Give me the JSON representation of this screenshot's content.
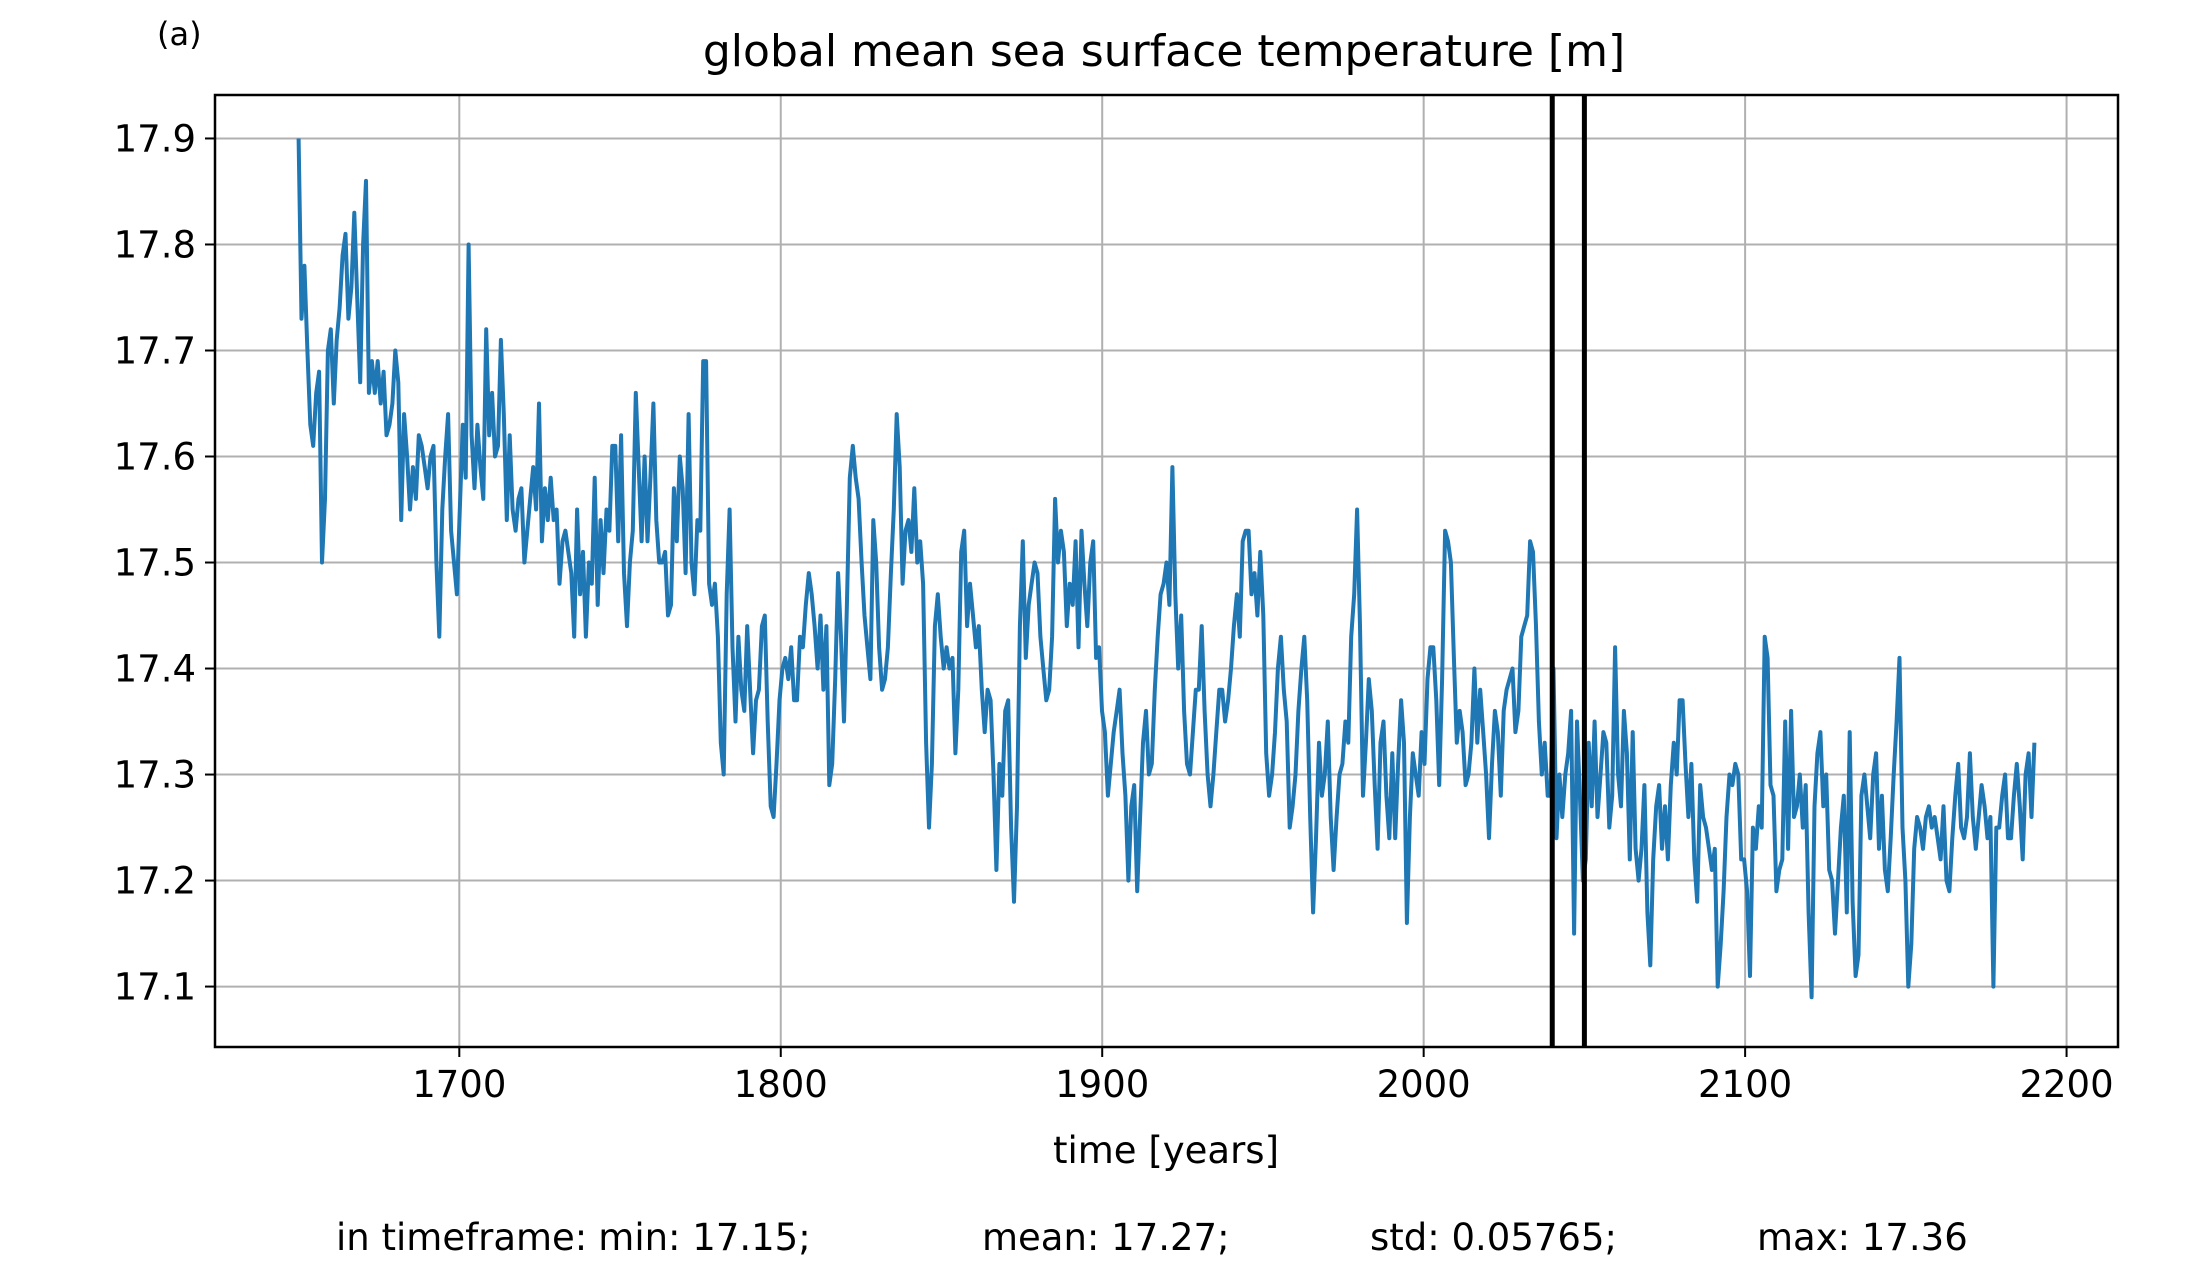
{
  "panel_label": "(a)",
  "chart_data": {
    "type": "line",
    "title": "global mean sea surface temperature [m]",
    "xlabel": "time [years]",
    "ylabel": "",
    "xlim": [
      1624,
      2216
    ],
    "ylim": [
      17.043,
      17.941
    ],
    "xticks": [
      1700,
      1800,
      1900,
      2000,
      2100,
      2200
    ],
    "yticks": [
      17.1,
      17.2,
      17.3,
      17.4,
      17.5,
      17.6,
      17.7,
      17.8,
      17.9
    ],
    "grid": true,
    "series_color": "#1f77b4",
    "vertical_markers": [
      2040,
      2050
    ],
    "series": [
      {
        "x_start": 1650,
        "x_end": 2190,
        "values": [
          17.9,
          17.73,
          17.78,
          17.7,
          17.63,
          17.61,
          17.66,
          17.68,
          17.5,
          17.56,
          17.7,
          17.72,
          17.65,
          17.71,
          17.74,
          17.79,
          17.81,
          17.73,
          17.76,
          17.83,
          17.75,
          17.67,
          17.8,
          17.86,
          17.66,
          17.69,
          17.66,
          17.69,
          17.65,
          17.68,
          17.62,
          17.63,
          17.65,
          17.7,
          17.67,
          17.54,
          17.64,
          17.6,
          17.55,
          17.59,
          17.56,
          17.62,
          17.61,
          17.59,
          17.57,
          17.6,
          17.61,
          17.5,
          17.43,
          17.55,
          17.6,
          17.64,
          17.53,
          17.5,
          17.47,
          17.55,
          17.63,
          17.58,
          17.8,
          17.62,
          17.57,
          17.63,
          17.59,
          17.56,
          17.72,
          17.62,
          17.66,
          17.6,
          17.61,
          17.71,
          17.64,
          17.54,
          17.62,
          17.55,
          17.53,
          17.56,
          17.57,
          17.5,
          17.53,
          17.56,
          17.59,
          17.55,
          17.65,
          17.52,
          17.57,
          17.54,
          17.58,
          17.54,
          17.55,
          17.48,
          17.52,
          17.53,
          17.51,
          17.49,
          17.43,
          17.55,
          17.47,
          17.51,
          17.43,
          17.5,
          17.48,
          17.58,
          17.46,
          17.54,
          17.49,
          17.55,
          17.53,
          17.61,
          17.61,
          17.52,
          17.62,
          17.49,
          17.44,
          17.5,
          17.53,
          17.66,
          17.59,
          17.52,
          17.6,
          17.52,
          17.58,
          17.65,
          17.54,
          17.5,
          17.5,
          17.51,
          17.45,
          17.46,
          17.57,
          17.52,
          17.6,
          17.57,
          17.49,
          17.64,
          17.5,
          17.47,
          17.54,
          17.53,
          17.69,
          17.69,
          17.48,
          17.46,
          17.48,
          17.43,
          17.33,
          17.3,
          17.47,
          17.55,
          17.42,
          17.35,
          17.43,
          17.38,
          17.36,
          17.44,
          17.38,
          17.32,
          17.37,
          17.38,
          17.44,
          17.45,
          17.35,
          17.27,
          17.26,
          17.31,
          17.37,
          17.4,
          17.41,
          17.39,
          17.42,
          17.37,
          17.37,
          17.43,
          17.42,
          17.46,
          17.49,
          17.47,
          17.44,
          17.4,
          17.45,
          17.38,
          17.44,
          17.29,
          17.31,
          17.39,
          17.49,
          17.43,
          17.35,
          17.46,
          17.58,
          17.61,
          17.58,
          17.56,
          17.5,
          17.45,
          17.42,
          17.39,
          17.54,
          17.5,
          17.42,
          17.38,
          17.39,
          17.42,
          17.49,
          17.55,
          17.64,
          17.59,
          17.48,
          17.53,
          17.54,
          17.51,
          17.57,
          17.5,
          17.52,
          17.48,
          17.33,
          17.25,
          17.31,
          17.44,
          17.47,
          17.43,
          17.4,
          17.42,
          17.4,
          17.41,
          17.32,
          17.38,
          17.51,
          17.53,
          17.44,
          17.48,
          17.45,
          17.42,
          17.44,
          17.38,
          17.34,
          17.38,
          17.37,
          17.3,
          17.21,
          17.31,
          17.28,
          17.36,
          17.37,
          17.25,
          17.18,
          17.27,
          17.44,
          17.52,
          17.41,
          17.46,
          17.48,
          17.5,
          17.49,
          17.43,
          17.4,
          17.37,
          17.38,
          17.43,
          17.56,
          17.5,
          17.53,
          17.51,
          17.44,
          17.48,
          17.46,
          17.52,
          17.42,
          17.53,
          17.48,
          17.44,
          17.5,
          17.52,
          17.41,
          17.42,
          17.36,
          17.34,
          17.28,
          17.31,
          17.34,
          17.36,
          17.38,
          17.32,
          17.28,
          17.2,
          17.27,
          17.29,
          17.19,
          17.26,
          17.33,
          17.36,
          17.3,
          17.31,
          17.38,
          17.43,
          17.47,
          17.48,
          17.5,
          17.46,
          17.59,
          17.47,
          17.4,
          17.45,
          17.36,
          17.31,
          17.3,
          17.34,
          17.38,
          17.38,
          17.44,
          17.36,
          17.3,
          17.27,
          17.3,
          17.34,
          17.38,
          17.38,
          17.35,
          17.37,
          17.4,
          17.44,
          17.47,
          17.43,
          17.52,
          17.53,
          17.53,
          17.47,
          17.49,
          17.45,
          17.51,
          17.45,
          17.32,
          17.28,
          17.3,
          17.34,
          17.4,
          17.43,
          17.38,
          17.35,
          17.25,
          17.27,
          17.3,
          17.36,
          17.4,
          17.43,
          17.37,
          17.26,
          17.17,
          17.24,
          17.33,
          17.28,
          17.3,
          17.35,
          17.26,
          17.21,
          17.26,
          17.3,
          17.31,
          17.35,
          17.33,
          17.43,
          17.47,
          17.55,
          17.44,
          17.28,
          17.33,
          17.39,
          17.36,
          17.29,
          17.23,
          17.33,
          17.35,
          17.28,
          17.24,
          17.32,
          17.24,
          17.31,
          17.37,
          17.33,
          17.16,
          17.26,
          17.32,
          17.3,
          17.28,
          17.34,
          17.31,
          17.39,
          17.42,
          17.42,
          17.37,
          17.29,
          17.39,
          17.53,
          17.52,
          17.5,
          17.41,
          17.33,
          17.36,
          17.34,
          17.29,
          17.3,
          17.33,
          17.4,
          17.33,
          17.38,
          17.34,
          17.3,
          17.24,
          17.31,
          17.36,
          17.34,
          17.28,
          17.36,
          17.38,
          17.39,
          17.4,
          17.34,
          17.36,
          17.43,
          17.44,
          17.45,
          17.52,
          17.51,
          17.44,
          17.35,
          17.3,
          17.33,
          17.28,
          17.28,
          17.4,
          17.24,
          17.3,
          17.26,
          17.3,
          17.32,
          17.36,
          17.15,
          17.35,
          17.28,
          17.2,
          17.22,
          17.33,
          17.27,
          17.35,
          17.26,
          17.3,
          17.34,
          17.33,
          17.25,
          17.28,
          17.42,
          17.3,
          17.27,
          17.36,
          17.32,
          17.22,
          17.34,
          17.23,
          17.2,
          17.23,
          17.29,
          17.17,
          17.12,
          17.22,
          17.27,
          17.29,
          17.23,
          17.27,
          17.22,
          17.29,
          17.33,
          17.3,
          17.37,
          17.37,
          17.31,
          17.26,
          17.31,
          17.22,
          17.18,
          17.29,
          17.26,
          17.25,
          17.23,
          17.21,
          17.23,
          17.1,
          17.14,
          17.19,
          17.26,
          17.3,
          17.29,
          17.31,
          17.3,
          17.22,
          17.22,
          17.19,
          17.11,
          17.25,
          17.23,
          17.27,
          17.25,
          17.43,
          17.41,
          17.29,
          17.28,
          17.19,
          17.21,
          17.22,
          17.35,
          17.23,
          17.36,
          17.26,
          17.27,
          17.3,
          17.25,
          17.29,
          17.17,
          17.09,
          17.27,
          17.32,
          17.34,
          17.27,
          17.3,
          17.21,
          17.2,
          17.15,
          17.2,
          17.25,
          17.28,
          17.17,
          17.34,
          17.18,
          17.11,
          17.13,
          17.28,
          17.3,
          17.27,
          17.24,
          17.3,
          17.32,
          17.23,
          17.28,
          17.21,
          17.19,
          17.24,
          17.3,
          17.35,
          17.41,
          17.25,
          17.2,
          17.1,
          17.14,
          17.23,
          17.26,
          17.25,
          17.23,
          17.26,
          17.27,
          17.25,
          17.26,
          17.24,
          17.22,
          17.27,
          17.2,
          17.19,
          17.24,
          17.28,
          17.31,
          17.25,
          17.24,
          17.26,
          17.32,
          17.26,
          17.23,
          17.26,
          17.29,
          17.27,
          17.24,
          17.26,
          17.1,
          17.25,
          17.25,
          17.28,
          17.3,
          17.24,
          17.24,
          17.28,
          17.31,
          17.27,
          17.22,
          17.3,
          17.32,
          17.26,
          17.33
        ]
      }
    ]
  },
  "stats": {
    "prefix": "in timeframe:",
    "min": "min: 17.15;",
    "mean": "mean: 17.27;",
    "std": "std: 0.05765;",
    "max": "max: 17.36"
  }
}
